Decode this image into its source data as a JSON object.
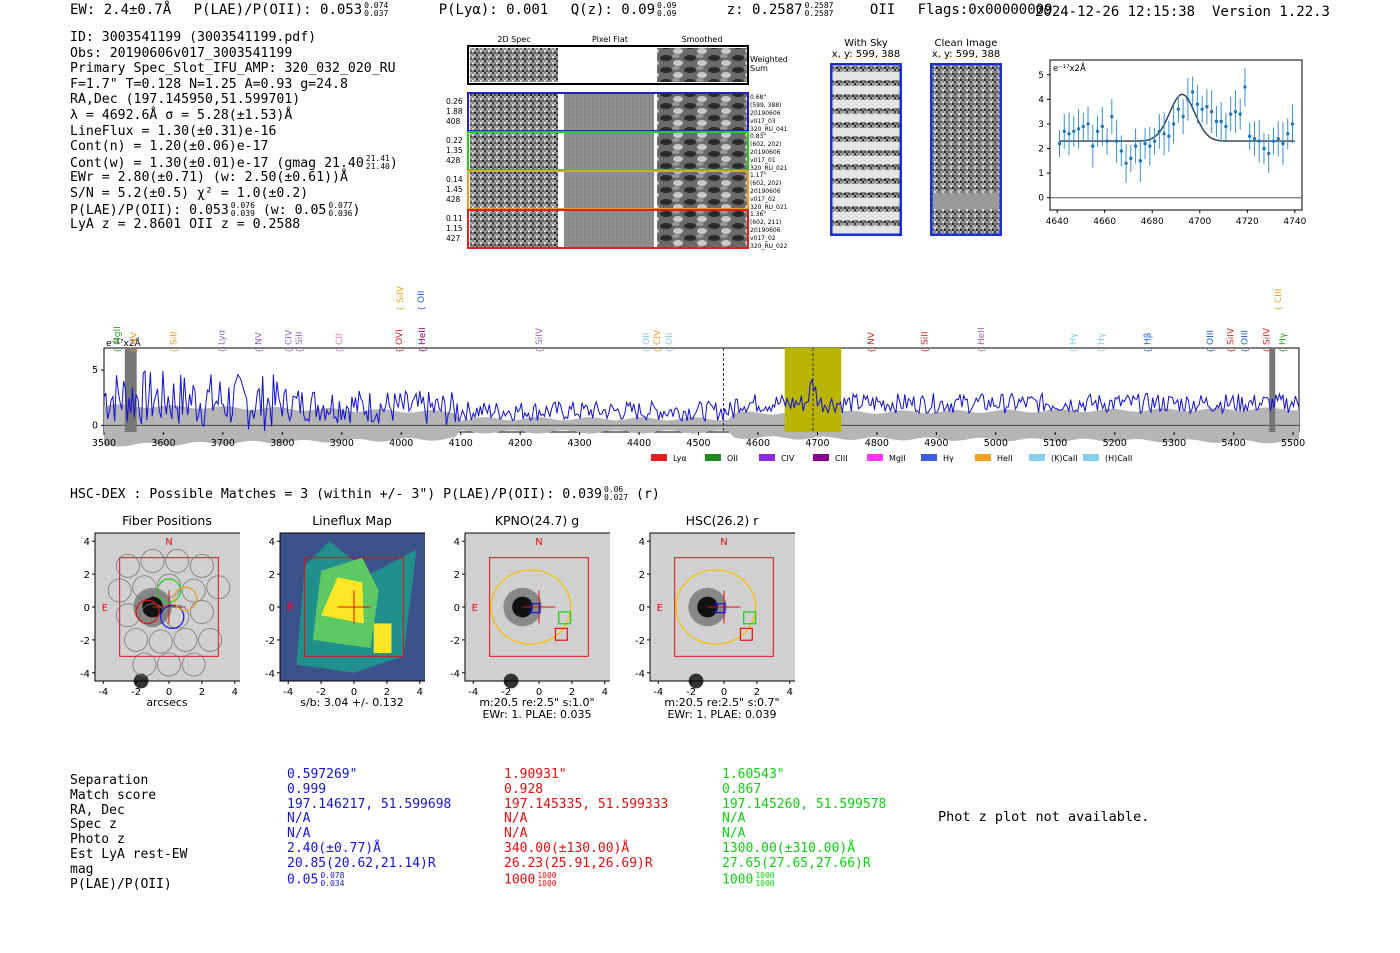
{
  "header": {
    "ew": "EW: 2.4±0.7Å",
    "plae": "P(LAE)/P(OII): 0.053",
    "plae_hi": "0.074",
    "plae_lo": "0.037",
    "plya": "P(Lyα): 0.001",
    "qz": "Q(z): 0.09",
    "qz_hi": "0.09",
    "qz_lo": "0.09",
    "z": "z: 0.2587",
    "z_hi": "0.2587",
    "z_lo": "0.2587",
    "z_line": "OII",
    "flags": "Flags:0x00000009",
    "datetime": "2024-12-26 12:15:38",
    "version": "Version 1.22.3"
  },
  "info": {
    "id": "ID: 3003541199 (3003541199.pdf)",
    "obs": "Obs: 20190606v017_3003541199",
    "primary": "Primary Spec_Slot_IFU_AMP: 320_032_020_RU",
    "fwhm": "F=1.7\"  T=0.128  N=1.25  A=0.93  g=24.8",
    "radec": "RA,Dec (197.145950,51.599701)",
    "lambda": "λ = 4692.6Å   σ = 5.28(±1.53)Å",
    "lineflux": "LineFlux = 1.30(±0.31)e-16",
    "contn": "Cont(n) = 1.20(±0.06)e-17",
    "contw": "Cont(w) = 1.30(±0.01)e-17 (gmag 21.40",
    "contw_hi": "21.41",
    "contw_lo": "21.40",
    "ewr": "EWr = 2.80(±0.71) (w: 2.50(±0.61))Å",
    "sn": "S/N = 5.2(±0.5)  χ² = 1.0(±0.2)",
    "plae": "P(LAE)/P(OII): 0.053",
    "plae_hi": "0.076",
    "plae_lo": "0.039",
    "plae_w": "(w: 0.05",
    "plae_w_hi": "0.077",
    "plae_w_lo": "0.036",
    "lyaz": "LyA z = 2.8601   OII z = 0.2588"
  },
  "cutouts": {
    "col_2d": "2D Spec",
    "col_flat": "Pixel Flat",
    "col_smooth": "Smoothed",
    "weighted": "Weighted",
    "sum": "Sum",
    "rows": [
      {
        "w": "0.26",
        "a": "1.88",
        "b": "408",
        "info": [
          "0.68\"",
          "(599, 388)",
          "20190606",
          "v017_03",
          "320_RU_041"
        ],
        "color": "#1f1fc8"
      },
      {
        "w": "0.22",
        "a": "1.35",
        "b": "428",
        "info": [
          "0.83\"",
          "(602, 202)",
          "20190606",
          "v017_01",
          "320_RU_021"
        ],
        "color": "#22cc22"
      },
      {
        "w": "0.14",
        "a": "1.45",
        "b": "428",
        "info": [
          "1.17\"",
          "(602, 202)",
          "20190606",
          "v017_02",
          "320_RU_021"
        ],
        "color": "#e8a020"
      },
      {
        "w": "0.11",
        "a": "1.15",
        "b": "427",
        "info": [
          "1.36\"",
          "(602, 211)",
          "20190606",
          "v017_02",
          "320_RU_022"
        ],
        "color": "#e02020"
      }
    ],
    "with_sky_title": "With Sky",
    "with_sky_xy": "x, y: 599, 388",
    "clean_title": "Clean Image",
    "clean_xy": "x, y: 599, 388"
  },
  "zoom_chart": {
    "type": "scatter",
    "ylabel": "e⁻¹⁷x2Å",
    "xlim": [
      4637,
      4743
    ],
    "ylim": [
      -0.5,
      5.6
    ],
    "xticks": [
      4640,
      4660,
      4680,
      4700,
      4720,
      4740
    ],
    "yticks": [
      0,
      1,
      2,
      3,
      4,
      5
    ],
    "fit_center": 4692.6,
    "fit_sigma": 5.28,
    "fit_amp": 1.9,
    "fit_cont": 2.3,
    "x": [
      4641,
      4643,
      4645,
      4647,
      4649,
      4651,
      4653,
      4655,
      4657,
      4659,
      4661,
      4663,
      4665,
      4667,
      4669,
      4671,
      4673,
      4675,
      4677,
      4679,
      4681,
      4683,
      4685,
      4687,
      4689,
      4691,
      4693,
      4695,
      4697,
      4699,
      4701,
      4703,
      4705,
      4707,
      4709,
      4711,
      4713,
      4715,
      4717,
      4719,
      4721,
      4723,
      4725,
      4727,
      4729,
      4731,
      4733,
      4735,
      4737,
      4739
    ],
    "y": [
      2.2,
      2.7,
      2.6,
      2.7,
      2.8,
      2.9,
      3.0,
      2.1,
      2.7,
      2.9,
      2.3,
      3.3,
      2.3,
      1.9,
      1.4,
      1.6,
      2.1,
      1.5,
      2.2,
      2.1,
      2.3,
      2.7,
      2.6,
      2.5,
      3.0,
      3.6,
      3.3,
      4.0,
      4.3,
      3.8,
      3.6,
      3.7,
      3.5,
      3.1,
      3.1,
      2.9,
      3.4,
      3.5,
      3.4,
      4.5,
      2.5,
      2.4,
      2.3,
      2.0,
      1.8,
      2.3,
      2.4,
      2.2,
      2.6,
      3.0
    ]
  },
  "spectrum": {
    "type": "line",
    "ylabel": "e⁻¹⁷x2Å",
    "xlim": [
      3500,
      5510
    ],
    "ylim": [
      -0.6,
      7.0
    ],
    "xticks": [
      3500,
      3600,
      3700,
      3800,
      3900,
      4000,
      4100,
      4200,
      4300,
      4400,
      4500,
      4600,
      4700,
      4800,
      4900,
      5000,
      5100,
      5200,
      5300,
      5400,
      5500
    ],
    "yticks": [
      0,
      5
    ],
    "highlight_band": [
      4645,
      4740
    ],
    "dashed_lines": [
      4542,
      4692.6
    ],
    "grey_bands": [
      [
        3535,
        3555
      ],
      [
        5460,
        5470
      ]
    ],
    "line_labels": [
      {
        "name": "MgII",
        "x": 3522,
        "color": "#2ca02c",
        "tier": 1
      },
      {
        "name": "NV",
        "x": 3550,
        "color": "#e8a020",
        "tier": 1
      },
      {
        "name": "SiII",
        "x": 3617,
        "color": "#e8a020",
        "tier": 1
      },
      {
        "name": "Lyα",
        "x": 3698,
        "color": "#9467bd",
        "tier": 1
      },
      {
        "name": "NV",
        "x": 3760,
        "color": "#9467bd",
        "tier": 1
      },
      {
        "name": "CIV",
        "x": 3810,
        "color": "#9467bd",
        "tier": 1
      },
      {
        "name": "SiII",
        "x": 3828,
        "color": "#9467bd",
        "tier": 1
      },
      {
        "name": "CII",
        "x": 3895,
        "color": "#e377c2",
        "tier": 1
      },
      {
        "name": "SiIV",
        "x": 3998,
        "color": "#e8a020",
        "tier": 0
      },
      {
        "name": "OII",
        "x": 4033,
        "color": "#1f5fd8",
        "tier": 0
      },
      {
        "name": "OVI",
        "x": 3996,
        "color": "#d62728",
        "tier": 1
      },
      {
        "name": "HeII",
        "x": 4035,
        "color": "#8b008b",
        "tier": 1
      },
      {
        "name": "SiIV",
        "x": 4232,
        "color": "#9467bd",
        "tier": 1
      },
      {
        "name": "OII",
        "x": 4412,
        "color": "#87ceeb",
        "tier": 1
      },
      {
        "name": "CIV",
        "x": 4430,
        "color": "#e8a020",
        "tier": 1
      },
      {
        "name": "OII",
        "x": 4450,
        "color": "#87ceeb",
        "tier": 1
      },
      {
        "name": "NV",
        "x": 4790,
        "color": "#d62728",
        "tier": 1
      },
      {
        "name": "SiII",
        "x": 4880,
        "color": "#d62728",
        "tier": 1
      },
      {
        "name": "HeII",
        "x": 4975,
        "color": "#9467bd",
        "tier": 1
      },
      {
        "name": "Hγ",
        "x": 5130,
        "color": "#87ceeb",
        "tier": 1
      },
      {
        "name": "Hγ",
        "x": 5177,
        "color": "#87ceeb",
        "tier": 1
      },
      {
        "name": "Hβ",
        "x": 5255,
        "color": "#1f5fd8",
        "tier": 1
      },
      {
        "name": "OIII",
        "x": 5360,
        "color": "#1f5fd8",
        "tier": 1
      },
      {
        "name": "SiIV",
        "x": 5395,
        "color": "#d62728",
        "tier": 1
      },
      {
        "name": "OIII",
        "x": 5418,
        "color": "#1f5fd8",
        "tier": 1
      },
      {
        "name": "CIII",
        "x": 5475,
        "color": "#e8a020",
        "tier": 0
      },
      {
        "name": "SiIV",
        "x": 5455,
        "color": "#d62728",
        "tier": 1
      },
      {
        "name": "Hγ",
        "x": 5482,
        "color": "#2ca02c",
        "tier": 1
      }
    ],
    "legend": [
      {
        "label": "Lyα",
        "color": "#e02020"
      },
      {
        "label": "OII",
        "color": "#1e8a1e"
      },
      {
        "label": "CIV",
        "color": "#8a2be2"
      },
      {
        "label": "CIII",
        "color": "#8b008b"
      },
      {
        "label": "MgII",
        "color": "#ff33ff"
      },
      {
        "label": "Hγ",
        "color": "#3b5fe0"
      },
      {
        "label": "HeII",
        "color": "#f5a020"
      },
      {
        "label": "(K)CaII",
        "color": "#87ceeb"
      },
      {
        "label": "(H)CaII",
        "color": "#87ceeb"
      }
    ]
  },
  "hsc": {
    "title": "HSC-DEX : Possible Matches = 3 (within +/- 3\")  P(LAE)/P(OII): 0.039",
    "title_hi": "0.06",
    "title_lo": "0.027",
    "title_band": "(r)"
  },
  "panels": [
    {
      "title": "Fiber Positions",
      "cap1": "arcsecs",
      "cap2": "",
      "cap3": ""
    },
    {
      "title": "Lineflux Map",
      "cap1": "s/b: 3.04 +/- 0.132",
      "cap2": "",
      "cap3": ""
    },
    {
      "title": "KPNO(24.7) g",
      "cap1": "m:20.5  re:2.5\"  s:1.0\"",
      "cap2": "EWr: 1. PLAE: 0.035",
      "cap3": ""
    },
    {
      "title": "HSC(26.2) r",
      "cap1": "m:20.5  re:2.5\"  s:0.7\"",
      "cap2": "EWr: 1. PLAE: 0.039",
      "cap3": ""
    }
  ],
  "panel_axis": {
    "ticks": [
      "-4",
      "-2",
      "0",
      "2",
      "4"
    ],
    "n_label": "N",
    "e_label": "E"
  },
  "matches": {
    "labels": [
      "Separation",
      "Match score",
      "RA, Dec",
      "Spec z",
      "Photo z",
      "Est LyA rest-EW",
      "mag",
      "P(LAE)/P(OII)"
    ],
    "columns": [
      {
        "color": "#1515d8",
        "values": [
          "0.597269\"",
          "0.999",
          "197.146217, 51.599698",
          "N/A",
          "N/A",
          "2.40(±0.77)Å",
          "20.85(20.62,21.14)R",
          "0.05"
        ],
        "plae_hi": "0.078",
        "plae_lo": "0.034"
      },
      {
        "color": "#e01010",
        "values": [
          "1.90931\"",
          "0.928",
          "197.145335, 51.599333",
          "N/A",
          "N/A",
          "340.00(±130.00)Å",
          "26.23(25.91,26.69)R",
          "1000"
        ],
        "plae_hi": "1000",
        "plae_lo": "1000"
      },
      {
        "color": "#10d010",
        "values": [
          "1.60543\"",
          "0.867",
          "197.145260, 51.599578",
          "N/A",
          "N/A",
          "1300.00(±310.00)Å",
          "27.65(27.65,27.66)R",
          "1000"
        ],
        "plae_hi": "1000",
        "plae_lo": "1000"
      }
    ],
    "phot_z": "Phot z plot not available."
  }
}
